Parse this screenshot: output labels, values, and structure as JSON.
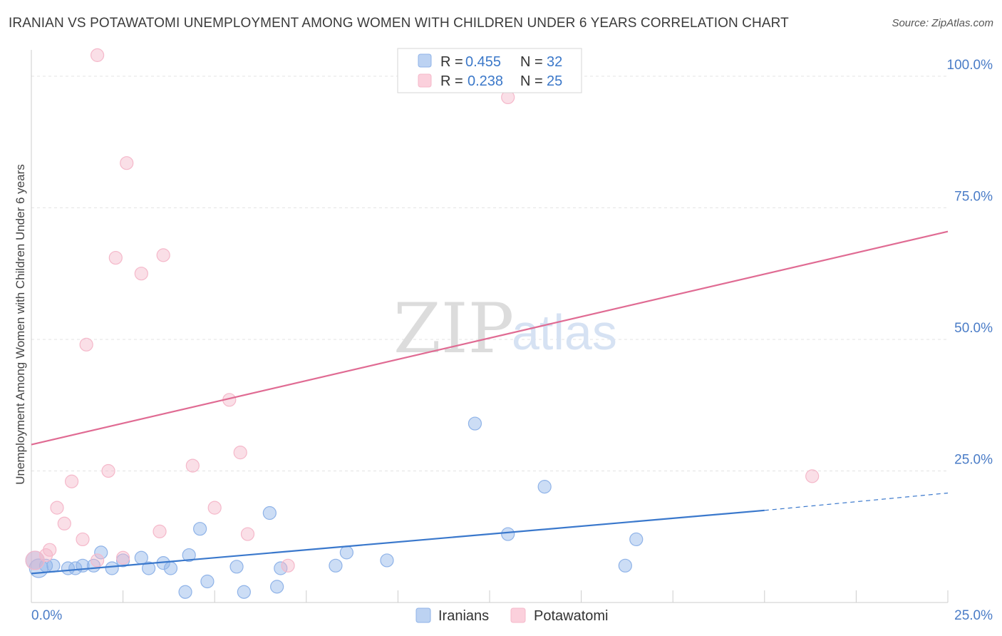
{
  "header": {
    "title": "IRANIAN VS POTAWATOMI UNEMPLOYMENT AMONG WOMEN WITH CHILDREN UNDER 6 YEARS CORRELATION CHART",
    "source": "Source: ZipAtlas.com"
  },
  "watermark": {
    "zip": "ZIP",
    "atlas": "atlas"
  },
  "legend": {
    "rows": [
      {
        "r_label": "R =",
        "r_value": "0.455",
        "n_label": "N =",
        "n_value": "32"
      },
      {
        "r_label": "R =",
        "r_value": "0.238",
        "n_label": "N =",
        "n_value": "25"
      }
    ]
  },
  "chart_data": {
    "type": "scatter",
    "title": "IRANIAN VS POTAWATOMI UNEMPLOYMENT AMONG WOMEN WITH CHILDREN UNDER 6 YEARS CORRELATION CHART",
    "xlabel": "",
    "ylabel": "Unemployment Among Women with Children Under 6 years",
    "xlim": [
      0,
      25
    ],
    "ylim": [
      0,
      105
    ],
    "x_tick_labels": [
      "0.0%",
      "25.0%"
    ],
    "y_ticks": [
      25,
      50,
      75,
      100
    ],
    "y_tick_labels": [
      "25.0%",
      "50.0%",
      "75.0%",
      "100.0%"
    ],
    "grid": "horizontal dashed",
    "legend_position": "top-center",
    "series": [
      {
        "name": "Iranians",
        "color": "#8fb3e8",
        "line_color": "#3a78cc",
        "r": 0.455,
        "n": 32,
        "points": [
          [
            0.1,
            8
          ],
          [
            0.4,
            7
          ],
          [
            0.6,
            7
          ],
          [
            1.0,
            6.5
          ],
          [
            1.2,
            6.5
          ],
          [
            1.4,
            7
          ],
          [
            1.7,
            7
          ],
          [
            1.9,
            9.5
          ],
          [
            2.2,
            6.5
          ],
          [
            2.5,
            8
          ],
          [
            3.0,
            8.5
          ],
          [
            3.2,
            6.5
          ],
          [
            3.6,
            7.5
          ],
          [
            3.8,
            6.5
          ],
          [
            4.2,
            2
          ],
          [
            4.3,
            9
          ],
          [
            4.6,
            14
          ],
          [
            4.8,
            4
          ],
          [
            5.6,
            6.8
          ],
          [
            5.8,
            2
          ],
          [
            6.5,
            17
          ],
          [
            6.7,
            3
          ],
          [
            6.8,
            6.5
          ],
          [
            8.3,
            7
          ],
          [
            8.6,
            9.5
          ],
          [
            9.7,
            8
          ],
          [
            12.1,
            34
          ],
          [
            13.0,
            13
          ],
          [
            14.0,
            22
          ],
          [
            16.2,
            7
          ],
          [
            16.5,
            12
          ],
          [
            0.2,
            6.5
          ]
        ],
        "trend_line": {
          "x0": 0,
          "y0": 5.5,
          "x1": 20,
          "y1": 17.5,
          "dashed_to_x": 25,
          "dashed_to_y": 20.8
        }
      },
      {
        "name": "Potawatomi",
        "color": "#f5b8ca",
        "line_color": "#e06b93",
        "r": 0.238,
        "n": 25,
        "points": [
          [
            1.8,
            104
          ],
          [
            0.1,
            8
          ],
          [
            0.4,
            9
          ],
          [
            0.5,
            10
          ],
          [
            0.7,
            18
          ],
          [
            0.9,
            15
          ],
          [
            1.1,
            23
          ],
          [
            1.4,
            12
          ],
          [
            1.5,
            49
          ],
          [
            1.8,
            8
          ],
          [
            2.1,
            25
          ],
          [
            2.3,
            65.5
          ],
          [
            2.5,
            8.5
          ],
          [
            2.6,
            83.5
          ],
          [
            3.0,
            62.5
          ],
          [
            3.5,
            13.5
          ],
          [
            3.6,
            66
          ],
          [
            4.4,
            26
          ],
          [
            5.0,
            18
          ],
          [
            5.4,
            38.5
          ],
          [
            5.7,
            28.5
          ],
          [
            5.9,
            13
          ],
          [
            7.0,
            7
          ],
          [
            13.0,
            96
          ],
          [
            21.3,
            24
          ]
        ],
        "trend_line": {
          "x0": 0,
          "y0": 30,
          "x1": 25,
          "y1": 70.5
        }
      }
    ]
  },
  "bottom_legend": {
    "items": [
      {
        "label": "Iranians"
      },
      {
        "label": "Potawatomi"
      }
    ]
  }
}
